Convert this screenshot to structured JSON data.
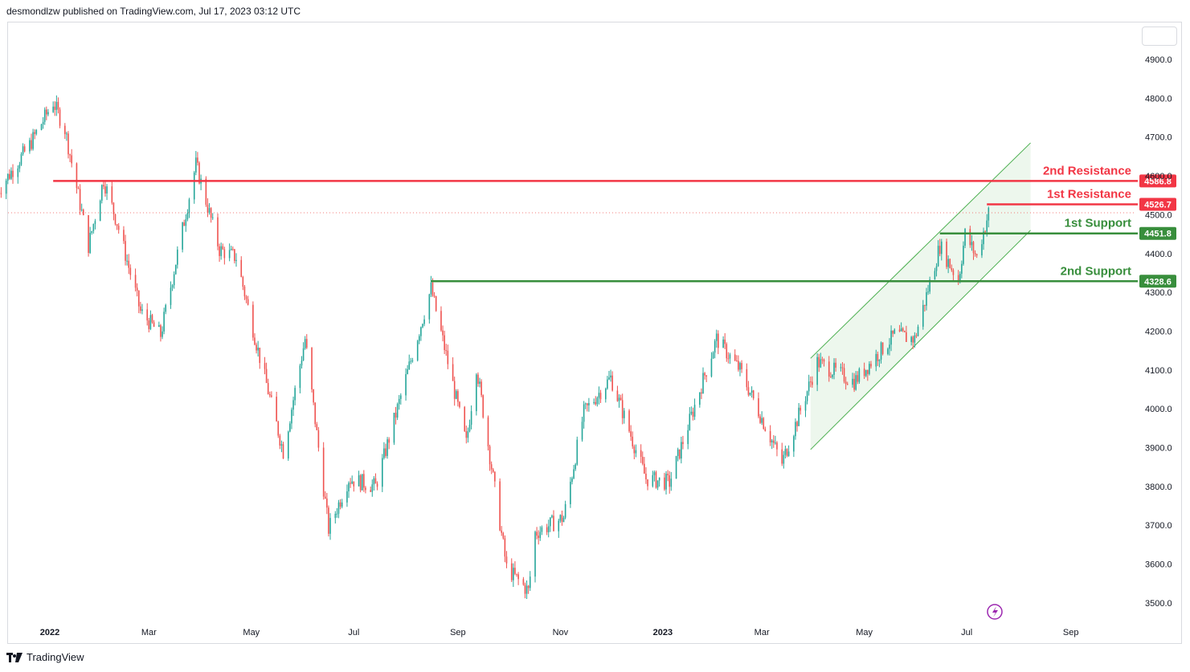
{
  "header": {
    "publisher_text": "desmondlzw published on TradingView.com, Jul 17, 2023 03:12 UTC"
  },
  "footer": {
    "brand": "TradingView"
  },
  "colors": {
    "up": "#26a69a",
    "down": "#ef5350",
    "resistance": "#f23645",
    "support": "#388e3c",
    "channel_fill": "#e8f5e9",
    "channel_line": "#4caf50"
  },
  "icons": [
    "tradingview-logo-icon",
    "lightning-icon"
  ],
  "chart_data": {
    "type": "candlestick",
    "x_ticks": [
      "2022",
      "Mar",
      "May",
      "Jul",
      "Sep",
      "Nov",
      "2023",
      "Mar",
      "May",
      "Jul",
      "Sep"
    ],
    "x_tick_dates": [
      "2022-01-01",
      "2022-03-01",
      "2022-05-01",
      "2022-07-01",
      "2022-09-01",
      "2022-11-01",
      "2023-01-01",
      "2023-03-01",
      "2023-05-01",
      "2023-07-01",
      "2023-09-01"
    ],
    "y_ticks": [
      "4900.0",
      "4800.0",
      "4700.0",
      "4600.0",
      "4500.0",
      "4400.0",
      "4300.0",
      "4200.0",
      "4100.0",
      "4000.0",
      "3900.0",
      "3800.0",
      "3700.0",
      "3600.0",
      "3500.0"
    ],
    "ylim": [
      3480,
      4950
    ],
    "price_path": [
      [
        "2021-12-01",
        4560
      ],
      [
        "2021-12-20",
        4680
      ],
      [
        "2022-01-03",
        4790
      ],
      [
        "2022-01-10",
        4720
      ],
      [
        "2022-01-24",
        4420
      ],
      [
        "2022-02-02",
        4590
      ],
      [
        "2022-02-10",
        4480
      ],
      [
        "2022-02-24",
        4250
      ],
      [
        "2022-03-08",
        4190
      ],
      [
        "2022-03-29",
        4630
      ],
      [
        "2022-04-12",
        4410
      ],
      [
        "2022-04-22",
        4390
      ],
      [
        "2022-05-05",
        4150
      ],
      [
        "2022-05-20",
        3890
      ],
      [
        "2022-06-02",
        4180
      ],
      [
        "2022-06-16",
        3690
      ],
      [
        "2022-06-28",
        3820
      ],
      [
        "2022-07-14",
        3800
      ],
      [
        "2022-08-16",
        4310
      ],
      [
        "2022-09-06",
        3910
      ],
      [
        "2022-09-12",
        4110
      ],
      [
        "2022-09-30",
        3590
      ],
      [
        "2022-10-13",
        3530
      ],
      [
        "2022-10-17",
        3680
      ],
      [
        "2022-11-03",
        3720
      ],
      [
        "2022-11-15",
        3990
      ],
      [
        "2022-12-01",
        4080
      ],
      [
        "2022-12-22",
        3820
      ],
      [
        "2023-01-05",
        3810
      ],
      [
        "2023-02-02",
        4180
      ],
      [
        "2023-02-16",
        4100
      ],
      [
        "2023-03-13",
        3860
      ],
      [
        "2023-04-03",
        4120
      ],
      [
        "2023-04-25",
        4070
      ],
      [
        "2023-05-19",
        4190
      ],
      [
        "2023-05-31",
        4180
      ],
      [
        "2023-06-15",
        4420
      ],
      [
        "2023-06-26",
        4330
      ],
      [
        "2023-06-30",
        4450
      ],
      [
        "2023-07-07",
        4390
      ],
      [
        "2023-07-14",
        4505
      ]
    ],
    "last_price": 4505,
    "levels": [
      {
        "name": "2nd Resistance",
        "value": 4586.8,
        "label": "4586.8",
        "kind": "resistance",
        "from": "2022-01-03"
      },
      {
        "name": "1st Resistance",
        "value": 4526.7,
        "label": "4526.7",
        "kind": "resistance",
        "from": "2023-07-13"
      },
      {
        "name": "1st Support",
        "value": 4451.8,
        "label": "4451.8",
        "kind": "support",
        "from": "2023-06-15"
      },
      {
        "name": "2nd Support",
        "value": 4328.6,
        "label": "4328.6",
        "kind": "support",
        "from": "2022-08-16"
      }
    ],
    "channel": {
      "upper": [
        [
          "2023-03-30",
          4130
        ],
        [
          "2023-08-08",
          4685
        ]
      ],
      "lower": [
        [
          "2023-03-30",
          3895
        ],
        [
          "2023-08-08",
          4460
        ]
      ]
    }
  }
}
